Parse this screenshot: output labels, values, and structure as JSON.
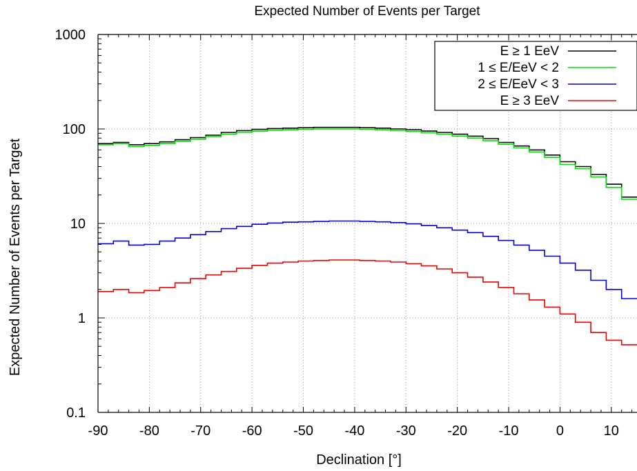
{
  "chart_data": {
    "type": "line",
    "title": "Expected Number of Events per Target",
    "xlabel": "Declination [°]",
    "ylabel": "Expected Number of Events per Target",
    "x_scale": "linear",
    "y_scale": "log",
    "xlim": [
      -90,
      15
    ],
    "ylim": [
      0.1,
      1000
    ],
    "x_ticks": [
      -90,
      -80,
      -70,
      -60,
      -50,
      -40,
      -30,
      -20,
      -10,
      0,
      10
    ],
    "x_tick_labels": [
      "-90",
      "-80",
      "-70",
      "-60",
      "-50",
      "-40",
      "-30",
      "-20",
      "-10",
      "0",
      "10"
    ],
    "y_ticks": [
      0.1,
      1,
      10,
      100,
      1000
    ],
    "y_tick_labels": [
      "0.1",
      "1",
      "10",
      "100",
      "1000"
    ],
    "grid": true,
    "legend_position": "top-right",
    "step_style": "histogram",
    "bin_width": 3,
    "bin_starts": [
      -90,
      -87,
      -84,
      -81,
      -78,
      -75,
      -72,
      -69,
      -66,
      -63,
      -60,
      -57,
      -54,
      -51,
      -48,
      -45,
      -42,
      -39,
      -36,
      -33,
      -30,
      -27,
      -24,
      -21,
      -18,
      -15,
      -12,
      -9,
      -6,
      -3,
      0,
      3,
      6,
      9,
      12
    ],
    "series": [
      {
        "name": "E ≥ 1 EeV",
        "color": "#000000",
        "values": [
          70,
          72,
          68,
          70,
          73,
          77,
          81,
          86,
          92,
          96,
          99,
          101,
          102,
          103,
          104,
          104,
          104,
          103,
          102,
          100,
          98,
          95,
          92,
          88,
          84,
          79,
          72,
          66,
          60,
          53,
          45,
          40,
          33,
          26,
          19
        ]
      },
      {
        "name": "1 ≤ E/EeV < 2",
        "color": "#00e000",
        "values": [
          68,
          70,
          65,
          67,
          70,
          74,
          78,
          83,
          88,
          92,
          95,
          97,
          98,
          99,
          100,
          100,
          100,
          99,
          98,
          96,
          94,
          91,
          88,
          84,
          80,
          75,
          69,
          63,
          57,
          50,
          42,
          38,
          31,
          24,
          18
        ]
      },
      {
        "name": "2 ≤ E/EeV < 3",
        "color": "#0000dd",
        "values": [
          6.1,
          6.5,
          5.9,
          6.0,
          6.5,
          7.0,
          7.6,
          8.2,
          8.8,
          9.3,
          9.8,
          10.1,
          10.3,
          10.4,
          10.5,
          10.6,
          10.6,
          10.5,
          10.4,
          10.2,
          9.9,
          9.5,
          9.0,
          8.5,
          8.0,
          7.3,
          6.6,
          5.9,
          5.2,
          4.5,
          3.8,
          3.2,
          2.5,
          2.0,
          1.6
        ]
      },
      {
        "name": "E ≥ 3 EeV",
        "color": "#ee0000",
        "values": [
          1.9,
          2.0,
          1.85,
          1.95,
          2.1,
          2.35,
          2.6,
          2.85,
          3.1,
          3.35,
          3.6,
          3.8,
          3.9,
          4.0,
          4.05,
          4.1,
          4.1,
          4.05,
          4.0,
          3.9,
          3.75,
          3.55,
          3.3,
          3.0,
          2.7,
          2.4,
          2.1,
          1.8,
          1.55,
          1.3,
          1.1,
          0.9,
          0.7,
          0.58,
          0.52
        ]
      }
    ]
  }
}
